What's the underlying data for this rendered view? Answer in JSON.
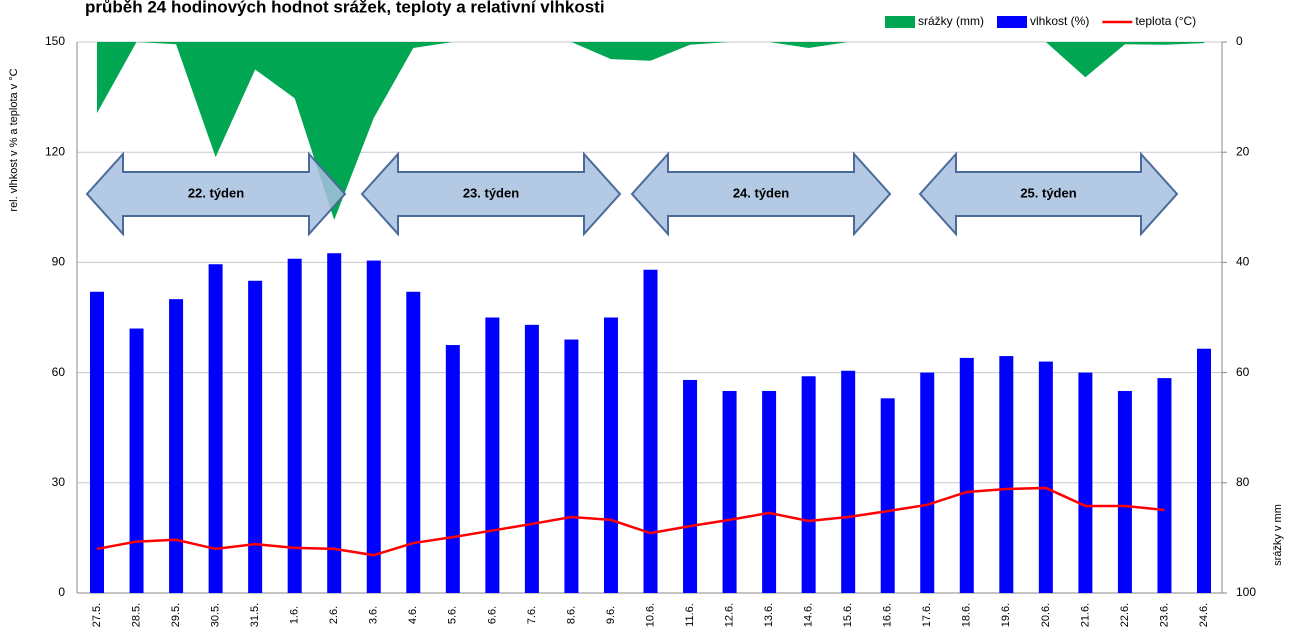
{
  "chart_data": {
    "type": "combo",
    "title": "průběh 24 hodinových hodnot srážek, teploty a relativní vlhkosti",
    "ylabel": "rel. vlhkost v % a teplota v °C",
    "y2label": "srážky v mm",
    "categories": [
      "27.5.",
      "28.5.",
      "29.5.",
      "30.5.",
      "31.5.",
      "1.6.",
      "2.6.",
      "3.6.",
      "4.6.",
      "5.6.",
      "6.6.",
      "7.6.",
      "8.6.",
      "9.6.",
      "10.6.",
      "11.6.",
      "12.6.",
      "13.6.",
      "14.6.",
      "15.6.",
      "16.6.",
      "17.6.",
      "18.6.",
      "19.6.",
      "20.6.",
      "21.6.",
      "22.6.",
      "23.6.",
      "24.6."
    ],
    "series": [
      {
        "name": "srážky (mm)",
        "color": "#00a651",
        "kind": "area",
        "axis": "y2",
        "values": [
          12.9,
          0,
          0.4,
          20.9,
          5,
          10.2,
          32.3,
          13.8,
          1.1,
          0,
          0,
          0,
          0,
          3.1,
          3.4,
          0.5,
          0,
          0,
          1.1,
          0,
          0,
          0,
          0,
          0,
          0,
          6.4,
          0.4,
          0.5,
          0.2
        ]
      },
      {
        "name": "vlhkost (%)",
        "color": "#0000ff",
        "kind": "bar",
        "values": [
          82,
          72,
          80,
          89.5,
          85,
          91,
          92.5,
          90.5,
          82,
          67.5,
          75,
          73,
          69,
          75,
          88,
          58,
          55,
          55,
          59,
          60.5,
          53,
          60,
          64,
          64.5,
          63,
          60,
          55,
          58.5,
          66.5
        ]
      },
      {
        "name": "teplota (°C)",
        "color": "#ff0000",
        "kind": "line",
        "values": [
          12,
          14,
          14.5,
          12,
          13.3,
          12.3,
          12,
          10.3,
          13.6,
          15.2,
          17,
          18.8,
          20.7,
          19.9,
          16.3,
          18.2,
          19.9,
          21.8,
          19.6,
          20.7,
          22.3,
          24,
          27.5,
          28.3,
          28.6,
          23.7,
          23.7,
          22.6,
          null
        ]
      }
    ],
    "ylim": [
      0,
      150
    ],
    "yticks": [
      0,
      30,
      60,
      90,
      120,
      150
    ],
    "y2lim": [
      100,
      0
    ],
    "y2ticks": [
      0,
      20,
      40,
      60,
      80,
      100
    ],
    "grid": true,
    "legend": "top-right",
    "annotations": [
      "22. týden",
      "23. týden",
      "24. týden",
      "25. týden"
    ]
  }
}
